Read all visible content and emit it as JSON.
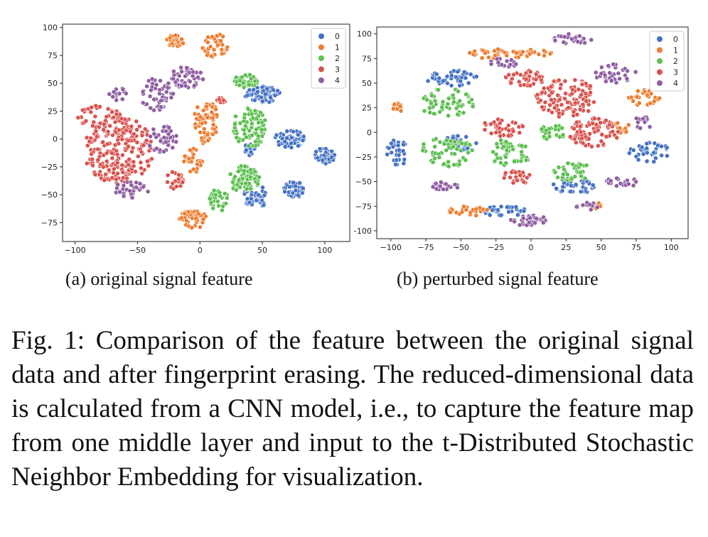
{
  "chart_data": [
    {
      "type": "scatter",
      "id": "a",
      "title": "",
      "xlabel": "",
      "ylabel": "",
      "xlim": [
        -110,
        120
      ],
      "ylim": [
        -92,
        103
      ],
      "xticks": [
        -100,
        -50,
        0,
        50,
        100
      ],
      "yticks": [
        -75,
        -50,
        -25,
        0,
        25,
        50,
        75,
        100
      ],
      "legend": {
        "position": "top-right",
        "entries": [
          "0",
          "1",
          "2",
          "3",
          "4"
        ]
      },
      "series": [
        {
          "name": "0",
          "color": "#4472c4",
          "clusters": [
            {
              "cx": 50,
              "cy": 40,
              "rx": 14,
              "ry": 8,
              "n": 70
            },
            {
              "cx": 72,
              "cy": 0,
              "rx": 12,
              "ry": 8,
              "n": 50
            },
            {
              "cx": 100,
              "cy": -15,
              "rx": 8,
              "ry": 8,
              "n": 40
            },
            {
              "cx": 75,
              "cy": -45,
              "rx": 8,
              "ry": 8,
              "n": 45
            },
            {
              "cx": 45,
              "cy": -52,
              "rx": 10,
              "ry": 10,
              "n": 45
            },
            {
              "cx": 40,
              "cy": -10,
              "rx": 6,
              "ry": 6,
              "n": 15
            }
          ]
        },
        {
          "name": "1",
          "color": "#ed7d31",
          "clusters": [
            {
              "cx": -20,
              "cy": 88,
              "rx": 8,
              "ry": 5,
              "n": 25
            },
            {
              "cx": 12,
              "cy": 84,
              "rx": 11,
              "ry": 11,
              "n": 35
            },
            {
              "cx": 5,
              "cy": 15,
              "rx": 10,
              "ry": 20,
              "n": 60
            },
            {
              "cx": -5,
              "cy": -20,
              "rx": 8,
              "ry": 12,
              "n": 25
            },
            {
              "cx": -5,
              "cy": -72,
              "rx": 12,
              "ry": 8,
              "n": 45
            }
          ]
        },
        {
          "name": "2",
          "color": "#5cbf4f",
          "clusters": [
            {
              "cx": 37,
              "cy": 52,
              "rx": 10,
              "ry": 6,
              "n": 50
            },
            {
              "cx": 40,
              "cy": 10,
              "rx": 14,
              "ry": 18,
              "n": 80
            },
            {
              "cx": 35,
              "cy": -35,
              "rx": 14,
              "ry": 12,
              "n": 70
            },
            {
              "cx": 15,
              "cy": -55,
              "rx": 8,
              "ry": 10,
              "n": 30
            }
          ]
        },
        {
          "name": "3",
          "color": "#d9534f",
          "clusters": [
            {
              "cx": -65,
              "cy": -10,
              "rx": 28,
              "ry": 30,
              "n": 220
            },
            {
              "cx": -80,
              "cy": 20,
              "rx": 18,
              "ry": 10,
              "n": 40
            },
            {
              "cx": -20,
              "cy": -37,
              "rx": 7,
              "ry": 8,
              "n": 20
            },
            {
              "cx": 17,
              "cy": 33,
              "rx": 4,
              "ry": 4,
              "n": 10
            }
          ]
        },
        {
          "name": "4",
          "color": "#8e5ea2",
          "clusters": [
            {
              "cx": -10,
              "cy": 55,
              "rx": 14,
              "ry": 10,
              "n": 50
            },
            {
              "cx": -35,
              "cy": 40,
              "rx": 14,
              "ry": 15,
              "n": 50
            },
            {
              "cx": -30,
              "cy": 0,
              "rx": 12,
              "ry": 12,
              "n": 40
            },
            {
              "cx": -55,
              "cy": -45,
              "rx": 14,
              "ry": 8,
              "n": 30
            },
            {
              "cx": -65,
              "cy": 40,
              "rx": 8,
              "ry": 6,
              "n": 15
            }
          ]
        }
      ]
    },
    {
      "type": "scatter",
      "id": "b",
      "title": "",
      "xlabel": "",
      "ylabel": "",
      "xlim": [
        -110,
        112
      ],
      "ylim": [
        -108,
        107
      ],
      "xticks": [
        -100,
        -75,
        -50,
        -25,
        0,
        25,
        50,
        75,
        100
      ],
      "yticks": [
        -100,
        -75,
        -50,
        -25,
        0,
        25,
        50,
        75,
        100
      ],
      "legend": {
        "position": "top-right",
        "entries": [
          "0",
          "1",
          "2",
          "3",
          "4"
        ]
      },
      "series": [
        {
          "name": "0",
          "color": "#4472c4",
          "clusters": [
            {
              "cx": -55,
              "cy": 55,
              "rx": 20,
              "ry": 8,
              "n": 45
            },
            {
              "cx": -95,
              "cy": -20,
              "rx": 8,
              "ry": 14,
              "n": 30
            },
            {
              "cx": -20,
              "cy": -80,
              "rx": 18,
              "ry": 5,
              "n": 35
            },
            {
              "cx": 85,
              "cy": -20,
              "rx": 15,
              "ry": 10,
              "n": 40
            },
            {
              "cx": 30,
              "cy": -55,
              "rx": 15,
              "ry": 8,
              "n": 40
            },
            {
              "cx": -50,
              "cy": -10,
              "rx": 12,
              "ry": 8,
              "n": 30
            }
          ]
        },
        {
          "name": "1",
          "color": "#ed7d31",
          "clusters": [
            {
              "cx": -30,
              "cy": 80,
              "rx": 15,
              "ry": 5,
              "n": 25
            },
            {
              "cx": 0,
              "cy": 80,
              "rx": 15,
              "ry": 5,
              "n": 25
            },
            {
              "cx": -45,
              "cy": -80,
              "rx": 15,
              "ry": 5,
              "n": 25
            },
            {
              "cx": 80,
              "cy": 35,
              "rx": 12,
              "ry": 8,
              "n": 25
            },
            {
              "cx": -95,
              "cy": 25,
              "rx": 4,
              "ry": 6,
              "n": 12
            },
            {
              "cx": 65,
              "cy": 5,
              "rx": 6,
              "ry": 6,
              "n": 15
            },
            {
              "cx": 45,
              "cy": -75,
              "rx": 6,
              "ry": 4,
              "n": 12
            }
          ]
        },
        {
          "name": "2",
          "color": "#5cbf4f",
          "clusters": [
            {
              "cx": -60,
              "cy": 30,
              "rx": 20,
              "ry": 15,
              "n": 55
            },
            {
              "cx": -60,
              "cy": -20,
              "rx": 20,
              "ry": 15,
              "n": 55
            },
            {
              "cx": -15,
              "cy": -20,
              "rx": 15,
              "ry": 15,
              "n": 45
            },
            {
              "cx": 15,
              "cy": 0,
              "rx": 10,
              "ry": 8,
              "n": 25
            },
            {
              "cx": 30,
              "cy": -40,
              "rx": 14,
              "ry": 10,
              "n": 35
            }
          ]
        },
        {
          "name": "3",
          "color": "#d9534f",
          "clusters": [
            {
              "cx": 25,
              "cy": 35,
              "rx": 22,
              "ry": 20,
              "n": 110
            },
            {
              "cx": 45,
              "cy": 0,
              "rx": 18,
              "ry": 15,
              "n": 80
            },
            {
              "cx": -5,
              "cy": 55,
              "rx": 15,
              "ry": 8,
              "n": 40
            },
            {
              "cx": -20,
              "cy": 5,
              "rx": 15,
              "ry": 10,
              "n": 40
            },
            {
              "cx": -10,
              "cy": -45,
              "rx": 10,
              "ry": 8,
              "n": 25
            }
          ]
        },
        {
          "name": "4",
          "color": "#8e5ea2",
          "clusters": [
            {
              "cx": 30,
              "cy": 95,
              "rx": 15,
              "ry": 5,
              "n": 25
            },
            {
              "cx": 60,
              "cy": 60,
              "rx": 15,
              "ry": 10,
              "n": 35
            },
            {
              "cx": -60,
              "cy": -55,
              "rx": 10,
              "ry": 5,
              "n": 20
            },
            {
              "cx": 0,
              "cy": -90,
              "rx": 15,
              "ry": 6,
              "n": 30
            },
            {
              "cx": 65,
              "cy": -50,
              "rx": 12,
              "ry": 6,
              "n": 20
            },
            {
              "cx": 80,
              "cy": 10,
              "rx": 6,
              "ry": 8,
              "n": 15
            },
            {
              "cx": -20,
              "cy": 70,
              "rx": 10,
              "ry": 5,
              "n": 15
            },
            {
              "cx": 40,
              "cy": -75,
              "rx": 8,
              "ry": 4,
              "n": 12
            }
          ]
        }
      ]
    }
  ],
  "captions": {
    "subcaption_a": "(a) original signal feature",
    "subcaption_b": "(b) perturbed signal feature",
    "figure_caption": "Fig. 1: Comparison of the feature between the original signal data and after fingerprint erasing. The reduced-dimensional data is calculated from a CNN model, i.e., to capture the feature map from one middle layer and input to the t-Distributed Stochastic Neighbor Embedding for visualization."
  }
}
